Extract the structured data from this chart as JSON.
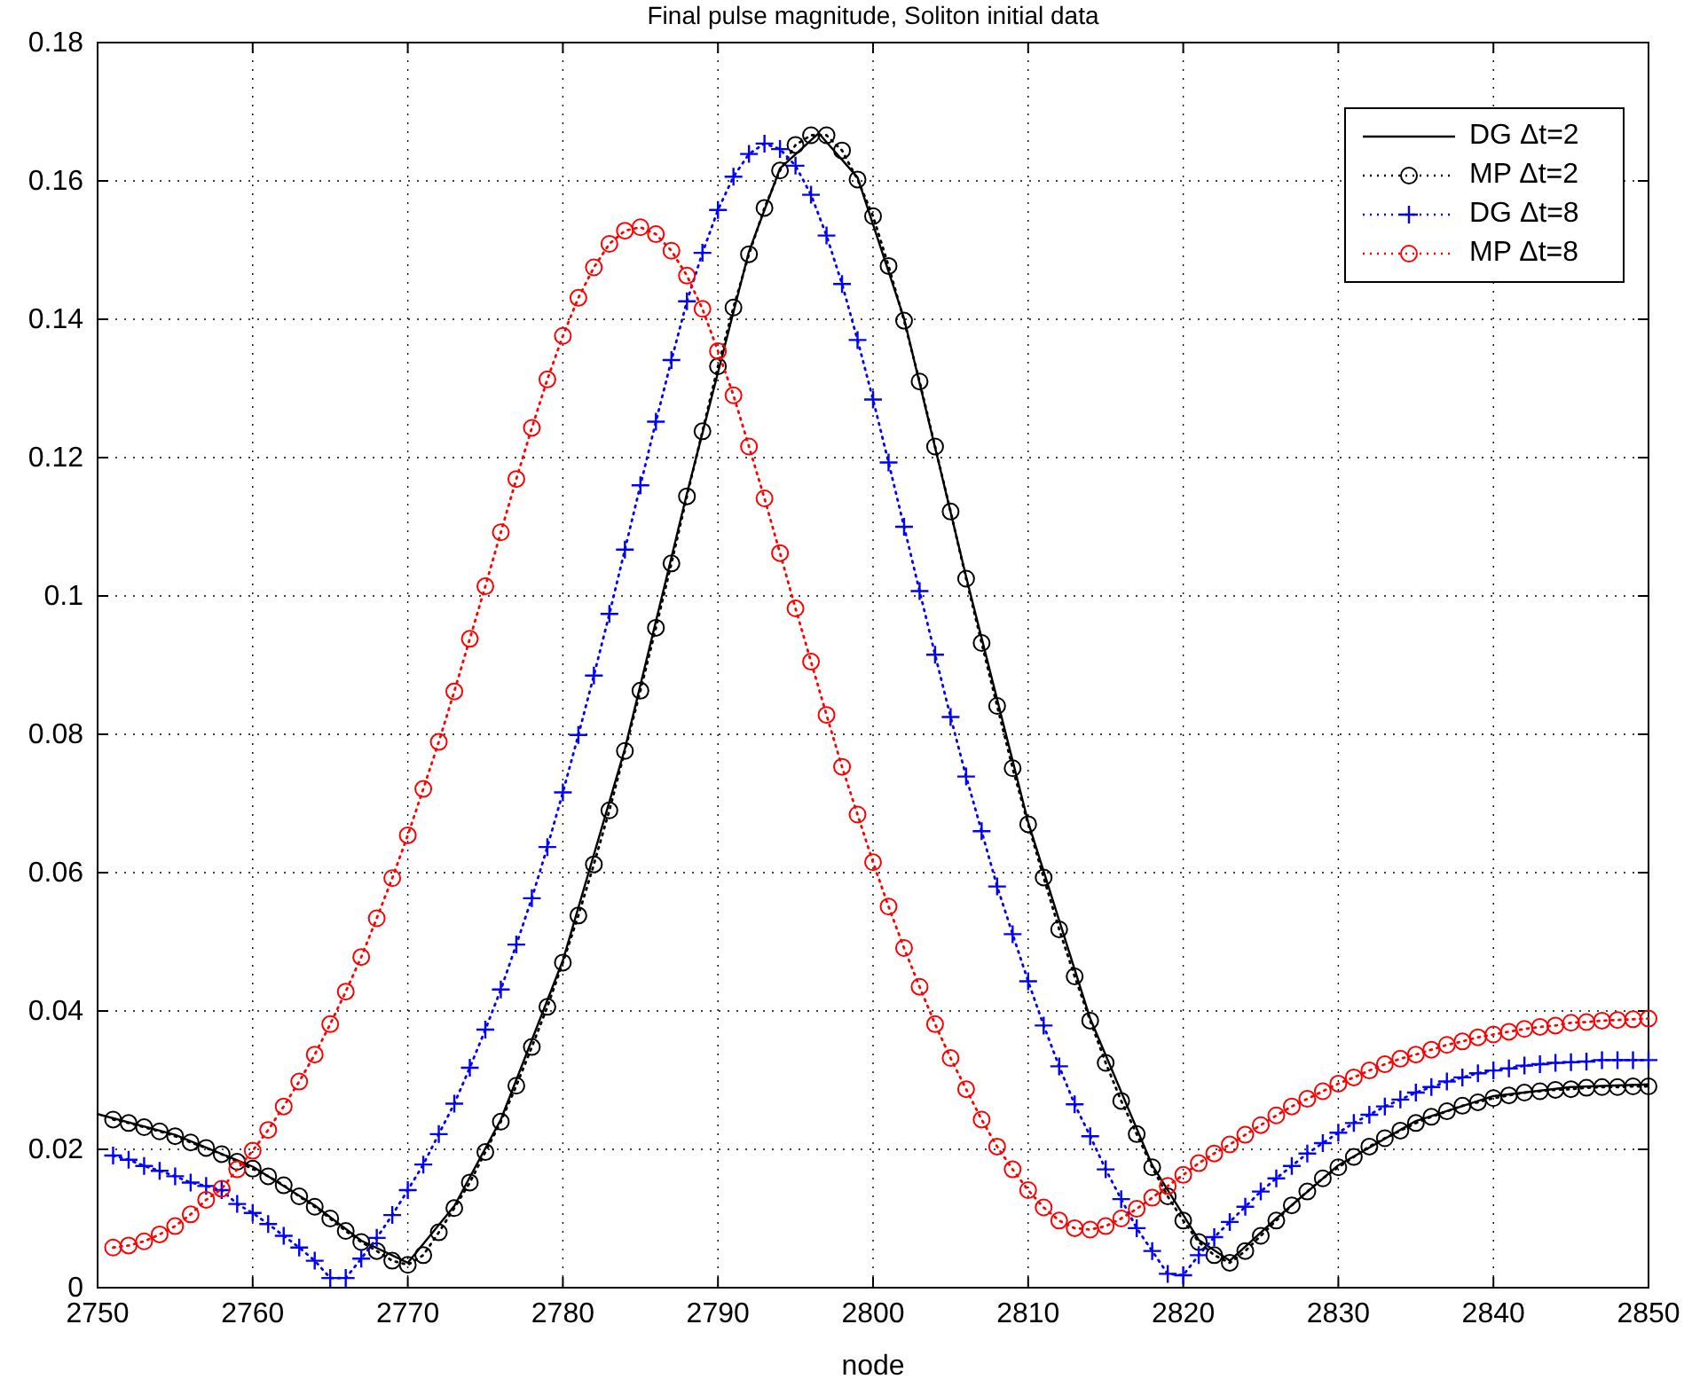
{
  "chart_data": {
    "type": "line",
    "title": "Final pulse magnitude, Soliton initial data",
    "xlabel": "node",
    "xlim": [
      2750,
      2850
    ],
    "ylim": [
      0,
      0.18
    ],
    "xticks": [
      2750,
      2760,
      2770,
      2780,
      2790,
      2800,
      2810,
      2820,
      2830,
      2840,
      2850
    ],
    "yticks": [
      0,
      0.02,
      0.04,
      0.06,
      0.08,
      0.1,
      0.12,
      0.14,
      0.16,
      0.18
    ],
    "grid": true,
    "legend": "top right",
    "x": [
      2751,
      2752,
      2753,
      2754,
      2755,
      2756,
      2757,
      2758,
      2759,
      2760,
      2761,
      2762,
      2763,
      2764,
      2765,
      2766,
      2767,
      2768,
      2769,
      2770,
      2771,
      2772,
      2773,
      2774,
      2775,
      2776,
      2777,
      2778,
      2779,
      2780,
      2781,
      2782,
      2783,
      2784,
      2785,
      2786,
      2787,
      2788,
      2789,
      2790,
      2791,
      2792,
      2793,
      2794,
      2795,
      2796,
      2797,
      2798,
      2799,
      2800,
      2801,
      2802,
      2803,
      2804,
      2805,
      2806,
      2807,
      2808,
      2809,
      2810,
      2811,
      2812,
      2813,
      2814,
      2815,
      2816,
      2817,
      2818,
      2819,
      2820,
      2821,
      2822,
      2823,
      2824,
      2825,
      2826,
      2827,
      2828,
      2829,
      2830,
      2831,
      2832,
      2833,
      2834,
      2835,
      2836,
      2837,
      2838,
      2839,
      2840,
      2841,
      2842,
      2843,
      2844,
      2845,
      2846,
      2847,
      2848,
      2849,
      2850
    ],
    "series": [
      {
        "name": "DG Δt=2",
        "color": "#000000",
        "marker": "none",
        "line_style": "solid",
        "x": [
          2750,
          2755,
          2760,
          2764,
          2767,
          2770,
          2773,
          2776,
          2780,
          2784,
          2788,
          2792,
          2794,
          2796.5,
          2799,
          2802,
          2806,
          2810,
          2814,
          2818,
          2821,
          2823,
          2826,
          2830,
          2835,
          2840,
          2845,
          2850
        ],
        "values": [
          0.0251,
          0.0221,
          0.0175,
          0.0119,
          0.0068,
          0.0036,
          0.0118,
          0.0243,
          0.0473,
          0.0779,
          0.1148,
          0.1498,
          0.1618,
          0.1669,
          0.1605,
          0.1401,
          0.1028,
          0.0673,
          0.0389,
          0.0177,
          0.0069,
          0.0039,
          0.01,
          0.0177,
          0.0241,
          0.0277,
          0.029,
          0.0294
        ]
      },
      {
        "name": "MP Δt=2",
        "color": "#000000",
        "marker": "circle",
        "line_style": "dotted",
        "values": [
          0.0243,
          0.0238,
          0.0232,
          0.0226,
          0.0219,
          0.021,
          0.0202,
          0.0193,
          0.0182,
          0.0172,
          0.0161,
          0.0148,
          0.0132,
          0.0117,
          0.01,
          0.0082,
          0.0066,
          0.0053,
          0.0039,
          0.0033,
          0.0047,
          0.008,
          0.0115,
          0.0152,
          0.0196,
          0.024,
          0.0292,
          0.0348,
          0.0406,
          0.047,
          0.0538,
          0.0612,
          0.069,
          0.0776,
          0.0863,
          0.0954,
          0.1047,
          0.1144,
          0.1238,
          0.1332,
          0.1417,
          0.1494,
          0.1561,
          0.1615,
          0.1652,
          0.1666,
          0.1666,
          0.1644,
          0.1602,
          0.1549,
          0.1477,
          0.1398,
          0.131,
          0.1216,
          0.1122,
          0.1025,
          0.0932,
          0.0841,
          0.0751,
          0.067,
          0.0593,
          0.0518,
          0.045,
          0.0386,
          0.0325,
          0.027,
          0.0222,
          0.0174,
          0.0132,
          0.0097,
          0.0066,
          0.0047,
          0.0036,
          0.0053,
          0.0075,
          0.0097,
          0.0119,
          0.0139,
          0.0158,
          0.0174,
          0.0189,
          0.0204,
          0.0216,
          0.0227,
          0.0238,
          0.0247,
          0.0255,
          0.0263,
          0.0268,
          0.0274,
          0.0278,
          0.0282,
          0.0284,
          0.0286,
          0.0287,
          0.0289,
          0.029,
          0.029,
          0.0291,
          0.0291
        ]
      },
      {
        "name": "DG Δt=8",
        "color": "#0000ff",
        "marker": "cross",
        "line_style": "dotted",
        "values": [
          0.0191,
          0.0185,
          0.0176,
          0.0169,
          0.0161,
          0.0152,
          0.0147,
          0.0141,
          0.0121,
          0.0108,
          0.0092,
          0.0075,
          0.0058,
          0.0039,
          0.0014,
          0.0014,
          0.0042,
          0.0072,
          0.0105,
          0.0141,
          0.0178,
          0.0222,
          0.0266,
          0.0318,
          0.0373,
          0.0431,
          0.0496,
          0.0563,
          0.0637,
          0.0716,
          0.0799,
          0.0885,
          0.0974,
          0.1067,
          0.116,
          0.1252,
          0.1341,
          0.1426,
          0.1496,
          0.1558,
          0.1606,
          0.1639,
          0.1654,
          0.1646,
          0.1622,
          0.158,
          0.1521,
          0.1451,
          0.137,
          0.1284,
          0.1193,
          0.11,
          0.1007,
          0.0915,
          0.0825,
          0.0739,
          0.066,
          0.058,
          0.0511,
          0.0443,
          0.0379,
          0.032,
          0.0265,
          0.0219,
          0.0171,
          0.0128,
          0.0086,
          0.0053,
          0.002,
          0.0018,
          0.0047,
          0.0073,
          0.0095,
          0.0117,
          0.0139,
          0.0158,
          0.0176,
          0.0194,
          0.0209,
          0.0224,
          0.0238,
          0.025,
          0.0262,
          0.0272,
          0.0282,
          0.029,
          0.0298,
          0.0304,
          0.031,
          0.0314,
          0.0317,
          0.0321,
          0.0323,
          0.0325,
          0.0326,
          0.0327,
          0.0329,
          0.0329,
          0.0329,
          0.0329
        ]
      },
      {
        "name": "MP Δt=8",
        "color": "#ff0000",
        "marker": "circle",
        "line_style": "dotted",
        "values": [
          0.0058,
          0.0061,
          0.0067,
          0.0077,
          0.0089,
          0.0106,
          0.0127,
          0.0143,
          0.0171,
          0.0198,
          0.0228,
          0.0262,
          0.0298,
          0.0337,
          0.0381,
          0.0428,
          0.0478,
          0.0534,
          0.0592,
          0.0654,
          0.0721,
          0.0789,
          0.0862,
          0.0938,
          0.1014,
          0.1092,
          0.1169,
          0.1243,
          0.1313,
          0.1376,
          0.1431,
          0.1475,
          0.1509,
          0.1528,
          0.1533,
          0.1523,
          0.1499,
          0.1463,
          0.1415,
          0.1354,
          0.129,
          0.1216,
          0.1141,
          0.1062,
          0.0982,
          0.0905,
          0.0828,
          0.0753,
          0.0684,
          0.0615,
          0.0551,
          0.0491,
          0.0435,
          0.0381,
          0.0332,
          0.0287,
          0.0243,
          0.0204,
          0.0171,
          0.0141,
          0.0116,
          0.0097,
          0.0086,
          0.0084,
          0.0089,
          0.01,
          0.0114,
          0.013,
          0.0147,
          0.0163,
          0.018,
          0.0194,
          0.0207,
          0.0221,
          0.0235,
          0.0249,
          0.0262,
          0.0273,
          0.0284,
          0.0295,
          0.0304,
          0.0314,
          0.0323,
          0.0331,
          0.0337,
          0.0344,
          0.0351,
          0.0356,
          0.0362,
          0.0366,
          0.037,
          0.0374,
          0.0377,
          0.0379,
          0.0383,
          0.0384,
          0.0386,
          0.0387,
          0.0388,
          0.0389
        ]
      }
    ]
  }
}
